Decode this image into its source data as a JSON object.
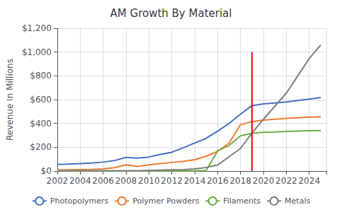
{
  "chart_data": {
    "type": "line",
    "title": "AM Growth By Material",
    "ylabel": "Revenue In Millions",
    "x": [
      2002,
      2003,
      2004,
      2005,
      2006,
      2007,
      2008,
      2009,
      2010,
      2011,
      2012,
      2013,
      2014,
      2015,
      2016,
      2017,
      2018,
      2019,
      2020,
      2021,
      2022,
      2023,
      2024,
      2025
    ],
    "series": [
      {
        "name": "Photopolymers",
        "color": "#4472C4",
        "values": [
          55,
          58,
          62,
          67,
          75,
          88,
          115,
          108,
          118,
          140,
          158,
          195,
          235,
          275,
          335,
          400,
          478,
          550,
          565,
          572,
          580,
          592,
          605,
          618
        ]
      },
      {
        "name": "Polymer Powders",
        "color": "#ED7D31",
        "values": [
          8,
          10,
          12,
          14,
          18,
          28,
          52,
          38,
          52,
          62,
          72,
          82,
          95,
          125,
          165,
          235,
          390,
          415,
          428,
          435,
          442,
          448,
          453,
          456
        ]
      },
      {
        "name": "Filaments",
        "color": "#70AD47",
        "values": [
          2,
          2,
          2,
          2,
          2,
          2,
          2,
          2,
          2,
          2,
          2,
          2,
          2,
          5,
          170,
          215,
          295,
          318,
          325,
          328,
          332,
          335,
          338,
          340
        ]
      },
      {
        "name": "Metals",
        "color": "#7F7F7F",
        "values": [
          2,
          2,
          2,
          2,
          2,
          2,
          2,
          2,
          5,
          8,
          10,
          12,
          18,
          30,
          50,
          120,
          190,
          320,
          435,
          545,
          655,
          800,
          945,
          1060
        ]
      }
    ],
    "annotations": [
      {
        "type": "vline",
        "x": 2019,
        "ymin": 0,
        "ymax": 1000,
        "color": "#FF0000"
      }
    ],
    "xlim": [
      2002,
      2025.5
    ],
    "xticks": [
      2002,
      2004,
      2006,
      2008,
      2010,
      2012,
      2014,
      2016,
      2018,
      2020,
      2022,
      2024
    ],
    "ylim": [
      0,
      1200
    ],
    "yticks": [
      {
        "value": 0,
        "label": "$0"
      },
      {
        "value": 200,
        "label": "$200"
      },
      {
        "value": 400,
        "label": "$400"
      },
      {
        "value": 600,
        "label": "$600"
      },
      {
        "value": 800,
        "label": "$800"
      },
      {
        "value": 1000,
        "label": "$1,000"
      },
      {
        "value": 1200,
        "label": "$1,200"
      }
    ],
    "grid": true,
    "legend": "bottom"
  }
}
